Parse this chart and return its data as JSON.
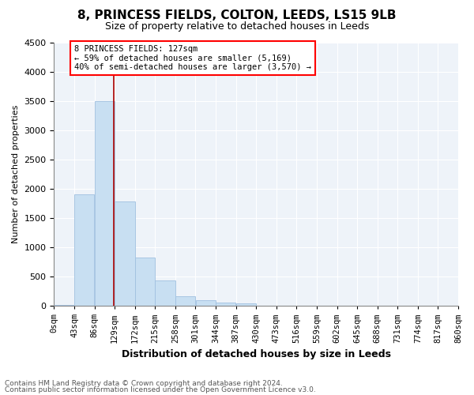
{
  "title": "8, PRINCESS FIELDS, COLTON, LEEDS, LS15 9LB",
  "subtitle": "Size of property relative to detached houses in Leeds",
  "xlabel": "Distribution of detached houses by size in Leeds",
  "ylabel": "Number of detached properties",
  "footnote1": "Contains HM Land Registry data © Crown copyright and database right 2024.",
  "footnote2": "Contains public sector information licensed under the Open Government Licence v3.0.",
  "annotation_line1": "8 PRINCESS FIELDS: 127sqm",
  "annotation_line2": "← 59% of detached houses are smaller (5,169)",
  "annotation_line3": "40% of semi-detached houses are larger (3,570) →",
  "property_size_sqm": 127,
  "bar_color": "#c8dff2",
  "bar_edge_color": "#a0c0e0",
  "marker_color": "#aa0000",
  "bg_color": "#eef3f9",
  "grid_color": "#ffffff",
  "ylim": [
    0,
    4500
  ],
  "yticks": [
    0,
    500,
    1000,
    1500,
    2000,
    2500,
    3000,
    3500,
    4000,
    4500
  ],
  "bin_edges": [
    0,
    43,
    86,
    129,
    172,
    215,
    258,
    301,
    344,
    387,
    430,
    473,
    516,
    559,
    602,
    645,
    688,
    731,
    774,
    817,
    860
  ],
  "bin_labels": [
    "0sqm",
    "43sqm",
    "86sqm",
    "129sqm",
    "172sqm",
    "215sqm",
    "258sqm",
    "301sqm",
    "344sqm",
    "387sqm",
    "430sqm",
    "473sqm",
    "516sqm",
    "559sqm",
    "602sqm",
    "645sqm",
    "688sqm",
    "731sqm",
    "774sqm",
    "817sqm",
    "860sqm"
  ],
  "bar_heights": [
    10,
    1900,
    3500,
    1780,
    830,
    440,
    160,
    100,
    60,
    40,
    0,
    0,
    0,
    0,
    0,
    0,
    0,
    0,
    0,
    0
  ]
}
